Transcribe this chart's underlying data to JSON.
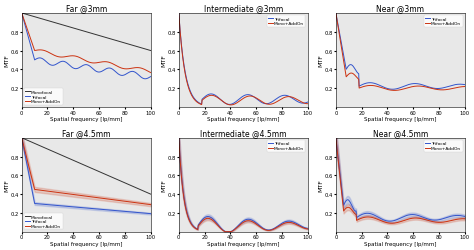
{
  "titles": [
    "Far @3mm",
    "Intermediate @3mm",
    "Near @3mm",
    "Far @4.5mm",
    "Intermediate @4.5mm",
    "Near @4.5mm"
  ],
  "xlabel": "Spatial frequency [lp/mm]",
  "ylabel": "MTF",
  "xlim": [
    0,
    100
  ],
  "ylim": [
    0,
    1
  ],
  "colors": {
    "monofocal": "#333333",
    "trifocal": "#3355cc",
    "mono_addon": "#cc3311"
  },
  "legend_far": [
    "Monofocal",
    "Trifocal",
    "Mono+AddOn"
  ],
  "legend_other": [
    "Trifocal",
    "Mono+AddOn"
  ],
  "bg_color": "#e8e8e8"
}
